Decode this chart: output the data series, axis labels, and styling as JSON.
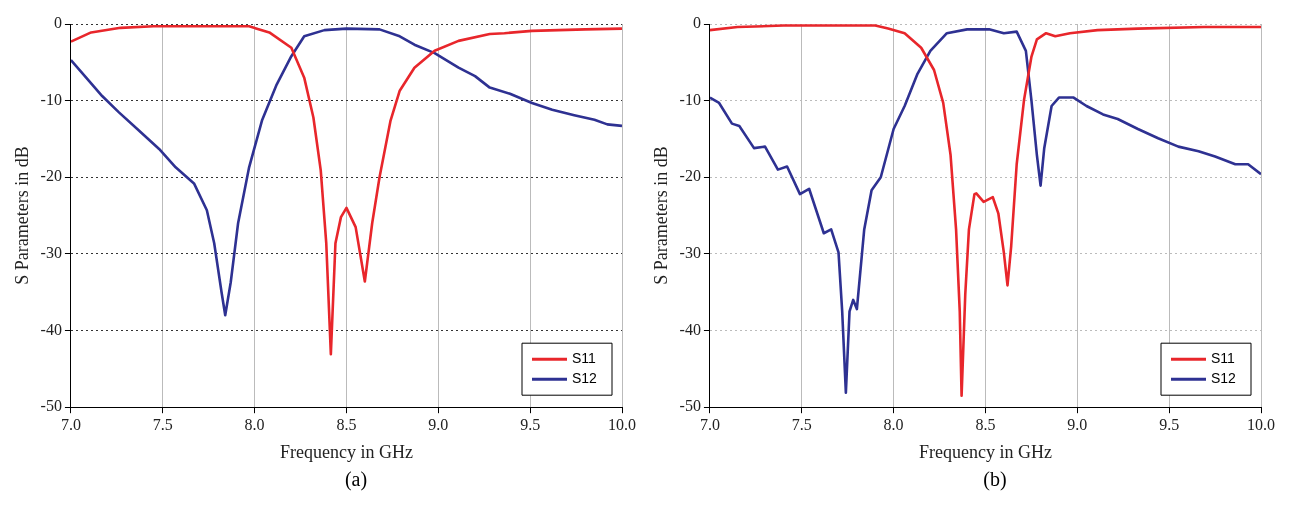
{
  "chart_data": [
    {
      "type": "line",
      "xlabel": "Frequency in GHz",
      "ylabel": "S Parameters in dB",
      "annotations": [
        "(a)"
      ],
      "xlim": [
        7,
        10
      ],
      "xticks": [
        {
          "value": 7,
          "label": "7.0"
        },
        7.5,
        {
          "value": 8,
          "label": "8.0"
        },
        8.5,
        {
          "value": 9,
          "label": "9.0"
        },
        9.5,
        {
          "value": 10,
          "label": "10.0"
        }
      ],
      "ylim": [
        -50,
        0
      ],
      "yticks": [
        -50,
        -40,
        -30,
        -20,
        -10,
        0
      ],
      "grid": true,
      "legend": "bottom right",
      "line_style": "solid",
      "marker": "none",
      "series": [
        {
          "name": "S11",
          "color": "#e8262b",
          "x": [
            7.0,
            7.11,
            7.27,
            7.45,
            7.97,
            8.08,
            8.2,
            8.27,
            8.32,
            8.36,
            8.39,
            8.415,
            8.44,
            8.47,
            8.5,
            8.55,
            8.6,
            8.64,
            8.68,
            8.74,
            8.79,
            8.87,
            8.98,
            9.11,
            9.28,
            9.36,
            9.51,
            9.8,
            10.0
          ],
          "values": [
            -2.3,
            -1.1,
            -0.5,
            -0.3,
            -0.3,
            -1.1,
            -3.1,
            -7.0,
            -12.2,
            -19.1,
            -28.6,
            -43.1,
            -28.6,
            -25.2,
            -24.0,
            -26.5,
            -33.6,
            -26.0,
            -20.0,
            -12.6,
            -8.7,
            -5.7,
            -3.5,
            -2.2,
            -1.3,
            -1.2,
            -0.9,
            -0.7,
            -0.6
          ]
        },
        {
          "name": "S12",
          "color": "#2e3192",
          "x": [
            7.0,
            7.09,
            7.17,
            7.26,
            7.37,
            7.48,
            7.57,
            7.67,
            7.74,
            7.78,
            7.82,
            7.84,
            7.87,
            7.91,
            7.97,
            8.04,
            8.12,
            8.2,
            8.27,
            8.38,
            8.5,
            8.68,
            8.79,
            8.87,
            8.98,
            9.11,
            9.2,
            9.28,
            9.39,
            9.51,
            9.62,
            9.74,
            9.85,
            9.92,
            10.0
          ],
          "values": [
            -4.7,
            -7.2,
            -9.4,
            -11.5,
            -13.9,
            -16.3,
            -18.7,
            -20.8,
            -24.3,
            -28.6,
            -35.0,
            -38.0,
            -33.7,
            -26.0,
            -18.7,
            -12.6,
            -7.9,
            -4.2,
            -1.6,
            -0.8,
            -0.6,
            -0.7,
            -1.6,
            -2.7,
            -3.8,
            -5.7,
            -6.8,
            -8.3,
            -9.1,
            -10.3,
            -11.2,
            -11.9,
            -12.5,
            -13.1,
            -13.3
          ]
        }
      ]
    },
    {
      "type": "line",
      "xlabel": "Frequency in GHz",
      "ylabel": "S Parameters in dB",
      "annotations": [
        "(b)"
      ],
      "xlim": [
        7,
        10
      ],
      "xticks": [
        {
          "value": 7,
          "label": "7.0"
        },
        7.5,
        {
          "value": 8,
          "label": "8.0"
        },
        8.5,
        {
          "value": 9,
          "label": "9.0"
        },
        9.5,
        {
          "value": 10,
          "label": "10.0"
        }
      ],
      "ylim": [
        -50,
        0
      ],
      "yticks": [
        -50,
        -40,
        -30,
        -20,
        -10,
        0
      ],
      "grid": true,
      "legend": "bottom right",
      "line_style": "solid",
      "marker": "none",
      "series": [
        {
          "name": "S11",
          "color": "#e8262b",
          "x": [
            7.0,
            7.15,
            7.4,
            7.9,
            7.97,
            8.06,
            8.15,
            8.22,
            8.27,
            8.31,
            8.34,
            8.36,
            8.37,
            8.39,
            8.41,
            8.44,
            8.45,
            8.49,
            8.54,
            8.57,
            8.6,
            8.62,
            8.64,
            8.67,
            8.71,
            8.75,
            8.78,
            8.83,
            8.88,
            8.96,
            9.11,
            9.33,
            9.69,
            10.0
          ],
          "values": [
            -0.8,
            -0.4,
            -0.2,
            -0.2,
            -0.6,
            -1.2,
            -3.1,
            -6.0,
            -10.3,
            -17.1,
            -26.8,
            -37.5,
            -48.5,
            -35.3,
            -26.8,
            -22.2,
            -22.1,
            -23.2,
            -22.6,
            -24.7,
            -29.8,
            -34.1,
            -29.0,
            -18.3,
            -9.9,
            -4.3,
            -2.0,
            -1.2,
            -1.6,
            -1.2,
            -0.8,
            -0.6,
            -0.4,
            -0.4
          ]
        },
        {
          "name": "S12",
          "color": "#2e3192",
          "x": [
            7.0,
            7.05,
            7.12,
            7.16,
            7.24,
            7.3,
            7.37,
            7.42,
            7.49,
            7.54,
            7.62,
            7.66,
            7.7,
            7.72,
            7.74,
            7.76,
            7.78,
            7.8,
            7.84,
            7.88,
            7.93,
            8.0,
            8.06,
            8.13,
            8.2,
            8.29,
            8.4,
            8.52,
            8.6,
            8.67,
            8.72,
            8.75,
            8.78,
            8.8,
            8.82,
            8.86,
            8.9,
            8.98,
            9.05,
            9.14,
            9.22,
            9.33,
            9.44,
            9.55,
            9.66,
            9.75,
            9.86,
            9.93,
            10.0
          ],
          "values": [
            -9.6,
            -10.3,
            -13.0,
            -13.3,
            -16.2,
            -16.0,
            -19.0,
            -18.6,
            -22.2,
            -21.5,
            -27.3,
            -26.8,
            -29.8,
            -37.5,
            -48.1,
            -37.5,
            -36.0,
            -37.2,
            -26.8,
            -21.7,
            -20.0,
            -13.7,
            -10.7,
            -6.5,
            -3.5,
            -1.2,
            -0.7,
            -0.7,
            -1.2,
            -1.0,
            -3.5,
            -9.9,
            -17.1,
            -21.1,
            -16.2,
            -10.7,
            -9.6,
            -9.6,
            -10.7,
            -11.8,
            -12.4,
            -13.7,
            -14.9,
            -16.0,
            -16.6,
            -17.3,
            -18.3,
            -18.3,
            -19.6
          ]
        }
      ]
    }
  ]
}
